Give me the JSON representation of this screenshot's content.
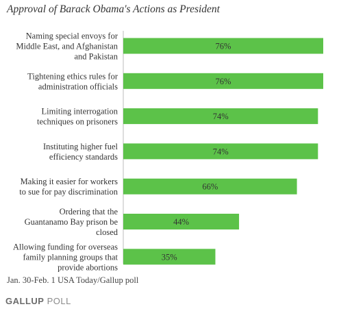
{
  "chart_data": {
    "type": "bar",
    "orientation": "horizontal",
    "title": "Approval of Barack Obama's Actions as President",
    "categories": [
      [
        "Naming special envoys for",
        "Middle East, and Afghanistan",
        "and Pakistan"
      ],
      [
        "Tightening ethics rules for",
        "administration officials"
      ],
      [
        "Limiting interrogation",
        "techniques on prisoners"
      ],
      [
        "Instituting higher fuel",
        "efficiency standards"
      ],
      [
        "Making it easier for workers",
        "to sue for pay discrimination"
      ],
      [
        "Ordering that the",
        "Guantanamo Bay prison be",
        "closed"
      ],
      [
        "Allowing funding for overseas",
        "family planning groups that",
        "provide abortions"
      ]
    ],
    "values": [
      76,
      76,
      74,
      74,
      66,
      44,
      35
    ],
    "value_labels": [
      "76%",
      "76%",
      "74%",
      "74%",
      "66%",
      "44%",
      "35%"
    ],
    "bar_color": "#5cc249",
    "xlim": [
      0,
      76
    ],
    "grid": false,
    "legend": "none"
  },
  "footnote": "Jan. 30-Feb. 1 USA Today/Gallup poll",
  "logo": {
    "brand": "GALLUP",
    "sub": "POLL"
  }
}
